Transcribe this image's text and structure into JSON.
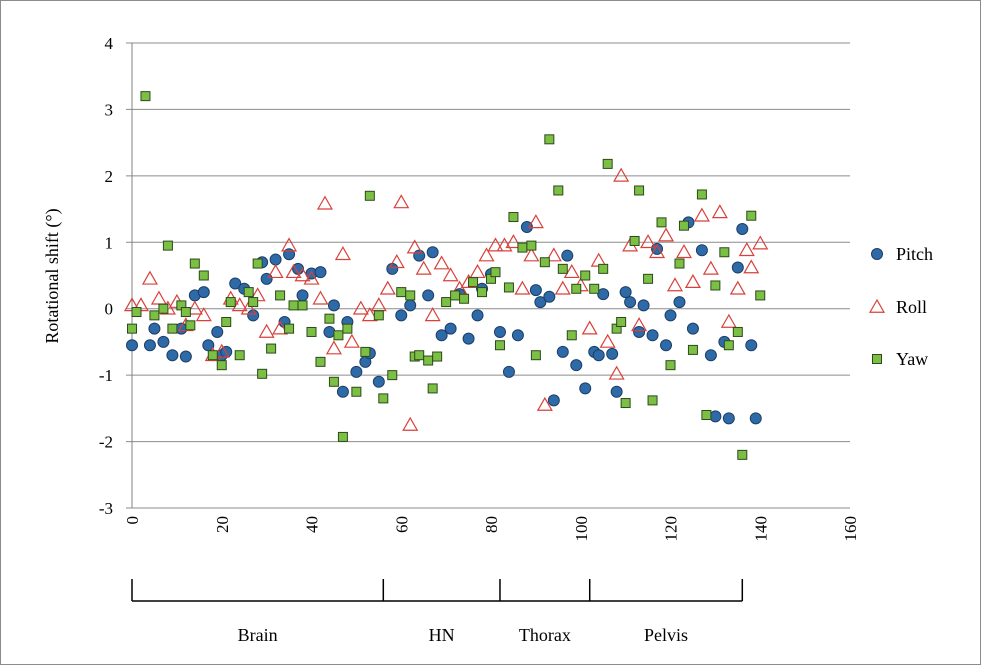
{
  "chart_data": {
    "type": "scatter",
    "ylabel": "Rotational shift (°)",
    "xlabel": "",
    "xlim": [
      0,
      160
    ],
    "ylim": [
      -3,
      4
    ],
    "x_ticks": [
      "0",
      "20",
      "40",
      "60",
      "80",
      "100",
      "120",
      "140",
      "160"
    ],
    "y_ticks": [
      "4",
      "3",
      "2",
      "1",
      "0",
      "-1",
      "-2",
      "-3"
    ],
    "grid": "horizontal",
    "legend_position": "right",
    "colors": {
      "pitch": "#2f6aa8",
      "roll": "#d9403a",
      "yaw": "#7cbf45"
    },
    "groups": [
      {
        "label": "Brain",
        "start": 0,
        "end": 56
      },
      {
        "label": "HN",
        "start": 56,
        "end": 82
      },
      {
        "label": "Thorax",
        "start": 82,
        "end": 102
      },
      {
        "label": "Pelvis",
        "start": 102,
        "end": 136
      }
    ],
    "series": [
      {
        "name": "Pitch",
        "marker": "circle",
        "x": [
          0,
          4,
          5,
          7,
          9,
          11,
          12,
          14,
          16,
          17,
          19,
          20,
          21,
          23,
          25,
          27,
          29,
          30,
          32,
          34,
          35,
          37,
          38,
          40,
          42,
          44,
          45,
          47,
          48,
          50,
          52,
          53,
          55,
          58,
          60,
          62,
          64,
          66,
          67,
          69,
          71,
          73,
          75,
          77,
          78,
          80,
          82,
          84,
          86,
          88,
          90,
          91,
          93,
          94,
          96,
          97,
          99,
          101,
          103,
          104,
          105,
          107,
          108,
          110,
          111,
          113,
          114,
          116,
          117,
          119,
          120,
          122,
          124,
          125,
          127,
          129,
          130,
          132,
          133,
          135,
          136,
          138,
          139
        ],
        "y": [
          -0.55,
          -0.55,
          -0.3,
          -0.5,
          -0.7,
          -0.3,
          -0.72,
          0.2,
          0.25,
          -0.55,
          -0.35,
          -0.7,
          -0.65,
          0.38,
          0.3,
          -0.1,
          0.7,
          0.45,
          0.74,
          -0.2,
          0.82,
          0.6,
          0.2,
          0.53,
          0.55,
          -0.35,
          0.05,
          -1.25,
          -0.2,
          -0.95,
          -0.8,
          -0.67,
          -1.1,
          0.6,
          -0.1,
          0.05,
          0.8,
          0.2,
          0.85,
          -0.4,
          -0.3,
          0.22,
          -0.45,
          -0.1,
          0.3,
          0.52,
          -0.35,
          -0.95,
          -0.4,
          1.23,
          0.28,
          0.1,
          0.18,
          -1.38,
          -0.65,
          0.8,
          -0.85,
          -1.2,
          -0.65,
          -0.7,
          0.22,
          -0.68,
          -1.25,
          0.25,
          0.1,
          -0.35,
          0.05,
          -0.4,
          0.9,
          -0.55,
          -0.1,
          0.1,
          1.3,
          -0.3,
          0.88,
          -0.7,
          -1.62,
          -0.5,
          -1.65,
          0.62,
          1.2,
          -0.55,
          -1.65
        ]
      },
      {
        "name": "Roll",
        "marker": "triangle",
        "x": [
          0,
          2,
          4,
          6,
          8,
          10,
          12,
          14,
          16,
          18,
          20,
          22,
          24,
          26,
          28,
          30,
          32,
          33,
          35,
          36,
          38,
          40,
          42,
          43,
          45,
          47,
          49,
          51,
          53,
          55,
          57,
          59,
          60,
          62,
          63,
          65,
          67,
          69,
          71,
          73,
          75,
          77,
          79,
          81,
          83,
          85,
          87,
          89,
          90,
          92,
          94,
          96,
          98,
          100,
          102,
          104,
          106,
          108,
          109,
          111,
          113,
          115,
          117,
          119,
          121,
          123,
          125,
          127,
          129,
          131,
          133,
          135,
          137,
          138,
          140
        ],
        "y": [
          0.05,
          0.05,
          0.45,
          0.15,
          0.0,
          0.1,
          -0.25,
          0.0,
          -0.1,
          -0.7,
          -0.65,
          0.15,
          0.05,
          0.0,
          0.2,
          -0.35,
          0.55,
          -0.3,
          0.95,
          0.55,
          0.5,
          0.45,
          0.15,
          1.58,
          -0.6,
          0.82,
          -0.5,
          0.0,
          -0.1,
          0.05,
          0.3,
          0.7,
          1.6,
          -1.75,
          0.92,
          0.6,
          -0.1,
          0.68,
          0.5,
          0.3,
          0.4,
          0.55,
          0.8,
          0.95,
          0.95,
          1.0,
          0.3,
          0.8,
          1.3,
          -1.45,
          0.8,
          0.3,
          0.55,
          0.35,
          -0.3,
          0.72,
          -0.5,
          -0.98,
          2.0,
          0.95,
          -0.25,
          1.0,
          0.85,
          1.1,
          0.35,
          0.85,
          0.4,
          1.4,
          0.6,
          1.45,
          -0.2,
          0.3,
          0.88,
          0.62,
          0.98
        ]
      },
      {
        "name": "Yaw",
        "marker": "square",
        "x": [
          0,
          1,
          3,
          5,
          7,
          8,
          9,
          11,
          12,
          13,
          14,
          16,
          18,
          20,
          21,
          22,
          24,
          26,
          27,
          28,
          29,
          31,
          33,
          35,
          36,
          38,
          40,
          42,
          44,
          45,
          46,
          47,
          48,
          50,
          52,
          53,
          55,
          56,
          58,
          60,
          62,
          63,
          64,
          66,
          67,
          68,
          70,
          72,
          74,
          76,
          78,
          80,
          81,
          82,
          84,
          85,
          87,
          89,
          90,
          92,
          93,
          95,
          96,
          98,
          99,
          101,
          103,
          105,
          106,
          108,
          109,
          110,
          112,
          113,
          115,
          116,
          118,
          120,
          122,
          123,
          125,
          127,
          128,
          130,
          132,
          133,
          135,
          136,
          138,
          140
        ],
        "y": [
          -0.3,
          -0.05,
          3.2,
          -0.1,
          0.0,
          0.95,
          -0.3,
          0.05,
          -0.05,
          -0.25,
          0.68,
          0.5,
          -0.7,
          -0.85,
          -0.2,
          0.1,
          -0.7,
          0.25,
          0.1,
          0.68,
          -0.98,
          -0.6,
          0.2,
          -0.3,
          0.05,
          0.05,
          -0.35,
          -0.8,
          -0.15,
          -1.1,
          -0.4,
          -1.93,
          -0.3,
          -1.25,
          -0.65,
          1.7,
          -0.1,
          -1.35,
          -1.0,
          0.25,
          0.2,
          -0.72,
          -0.7,
          -0.78,
          -1.2,
          -0.72,
          0.1,
          0.2,
          0.15,
          0.4,
          0.25,
          0.45,
          0.55,
          -0.55,
          0.32,
          1.38,
          0.92,
          0.95,
          -0.7,
          0.7,
          2.55,
          1.78,
          0.6,
          -0.4,
          0.3,
          0.5,
          0.3,
          0.6,
          2.18,
          -0.3,
          -0.2,
          -1.42,
          1.02,
          1.78,
          0.45,
          -1.38,
          1.3,
          -0.85,
          0.68,
          1.25,
          -0.62,
          1.72,
          -1.6,
          0.35,
          0.85,
          -0.55,
          -0.35,
          -2.2,
          1.4,
          0.2
        ]
      }
    ]
  }
}
